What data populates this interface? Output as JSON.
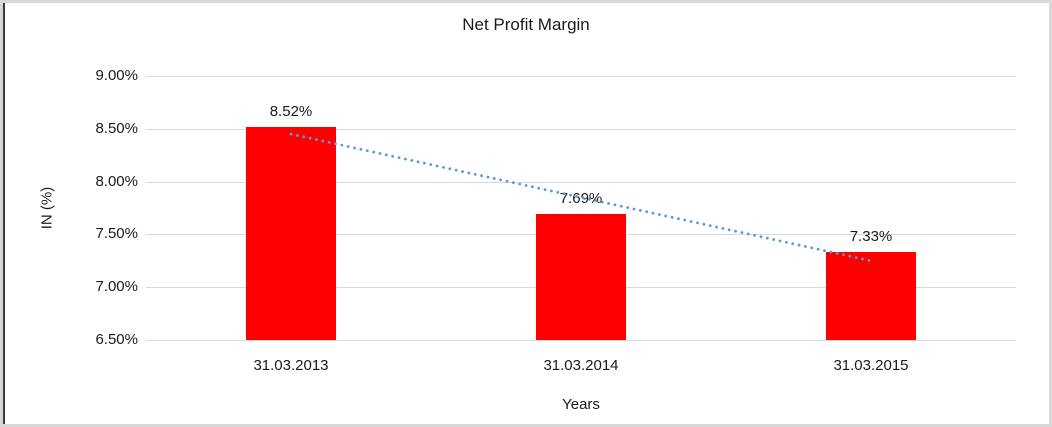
{
  "chart_data": {
    "type": "bar",
    "title": "Net Profit Margin",
    "xlabel": "Years",
    "ylabel": "IN (%)",
    "categories": [
      "31.03.2013",
      "31.03.2014",
      "31.03.2015"
    ],
    "values": [
      8.52,
      7.69,
      7.33
    ],
    "data_labels": [
      "8.52%",
      "7.69%",
      "7.33%"
    ],
    "ylim": [
      6.5,
      9.0
    ],
    "ytick_step": 0.5,
    "yticks_top_to_bottom": [
      "9.00%",
      "8.50%",
      "8.00%",
      "7.50%",
      "7.00%",
      "6.50%"
    ],
    "grid": true,
    "legend": "none",
    "bar_color": "#ff0000",
    "gridline_color": "#d9d9d9",
    "text_color": "#1a1a1a",
    "trendline": {
      "kind": "linear",
      "style": "dotted",
      "color": "#5b9bd5",
      "start_value": 8.45,
      "end_value": 7.25
    },
    "frame_border_color": "#d8d8d8",
    "frame_left_accent_color": "#3a3a3a"
  }
}
